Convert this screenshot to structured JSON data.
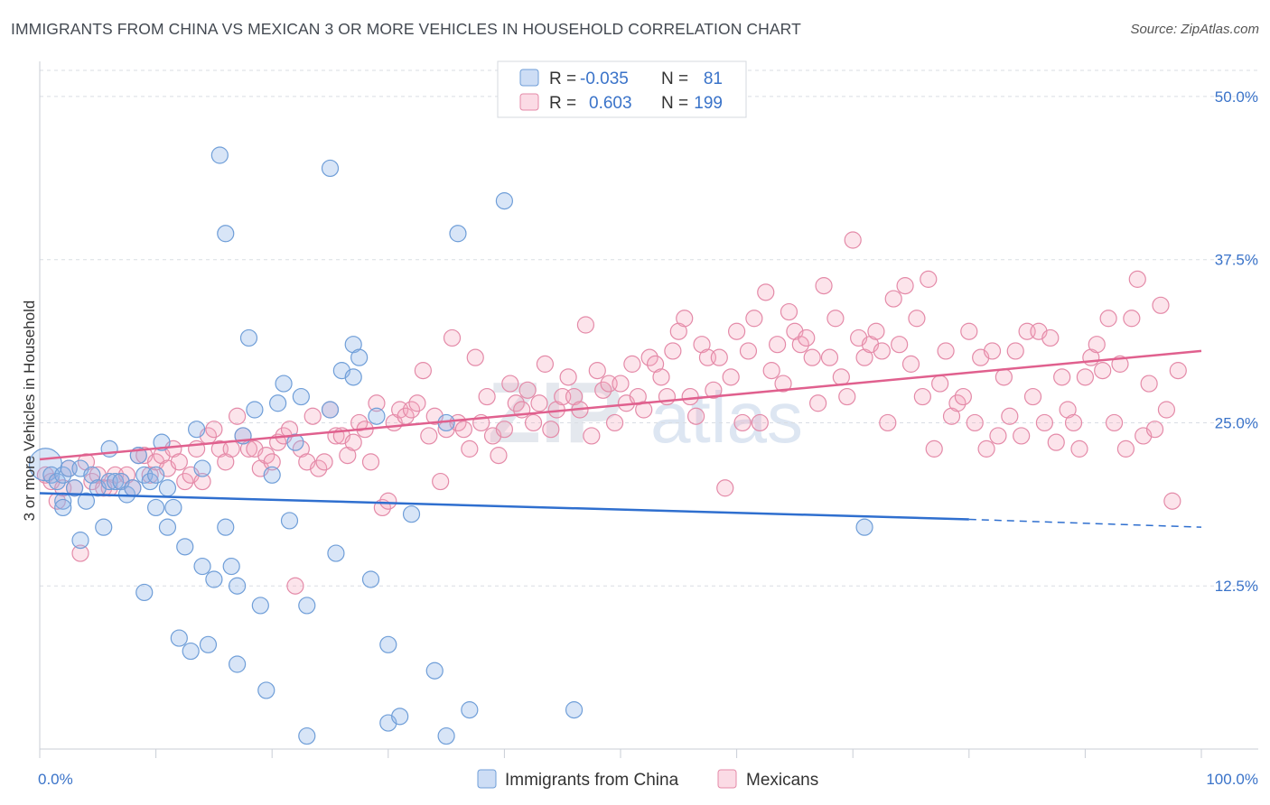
{
  "title": "IMMIGRANTS FROM CHINA VS MEXICAN 3 OR MORE VEHICLES IN HOUSEHOLD CORRELATION CHART",
  "source": "Source: ZipAtlas.com",
  "watermark": {
    "zip": "ZIP",
    "atlas": "atlas"
  },
  "colors": {
    "china_fill": "rgba(144,180,232,0.35)",
    "china_stroke": "#6f9ed8",
    "china_line": "#2f6fcf",
    "mex_fill": "rgba(244,166,190,0.30)",
    "mex_stroke": "#e48aa8",
    "mex_line": "#e0608e",
    "tick": "#3a73c9",
    "grid": "#d9dde3"
  },
  "legend": {
    "china": {
      "r_label": "R =",
      "r_value": "-0.035",
      "n_label": "N =",
      "n_value": "81"
    },
    "mex": {
      "r_label": "R =",
      "r_value": "0.603",
      "n_label": "N =",
      "n_value": "199"
    }
  },
  "chart_data": {
    "type": "scatter",
    "xlabel": "",
    "ylabel": "3 or more Vehicles in Household",
    "xlim": [
      0,
      100
    ],
    "ylim": [
      0,
      52
    ],
    "x_tick_labels": [
      "0.0%",
      "100.0%"
    ],
    "y_ticks": [
      12.5,
      25.0,
      37.5,
      50.0
    ],
    "y_tick_labels": [
      "12.5%",
      "25.0%",
      "37.5%",
      "50.0%"
    ],
    "grid": "horizontal dashed",
    "legend_position": "top-center",
    "series": [
      {
        "name": "Immigrants from China",
        "trend": {
          "x": [
            0,
            80
          ],
          "y": [
            19.6,
            17.6
          ],
          "dashed_to": [
            100,
            17.0
          ]
        },
        "points": [
          [
            0.5,
            21.8
          ],
          [
            1,
            21
          ],
          [
            1.5,
            20.5
          ],
          [
            2,
            21
          ],
          [
            2,
            19
          ],
          [
            2,
            18.5
          ],
          [
            2.5,
            21.5
          ],
          [
            3,
            20
          ],
          [
            3.5,
            21.5
          ],
          [
            3.5,
            16
          ],
          [
            4,
            19
          ],
          [
            4.5,
            21
          ],
          [
            5,
            20
          ],
          [
            5.5,
            17
          ],
          [
            6,
            23
          ],
          [
            6,
            20.5
          ],
          [
            6.5,
            20.5
          ],
          [
            7,
            20.5
          ],
          [
            7.5,
            19.5
          ],
          [
            8,
            20
          ],
          [
            8.5,
            22.5
          ],
          [
            9,
            12
          ],
          [
            9,
            21
          ],
          [
            9.5,
            20.5
          ],
          [
            10,
            21
          ],
          [
            10,
            18.5
          ],
          [
            10.5,
            23.5
          ],
          [
            11,
            17
          ],
          [
            11,
            20
          ],
          [
            11.5,
            18.5
          ],
          [
            12,
            8.5
          ],
          [
            12.5,
            15.5
          ],
          [
            13,
            7.5
          ],
          [
            13.5,
            24.5
          ],
          [
            14,
            21.5
          ],
          [
            14,
            14
          ],
          [
            14.5,
            8
          ],
          [
            15,
            13
          ],
          [
            15.5,
            45.5
          ],
          [
            16,
            39.5
          ],
          [
            16,
            17
          ],
          [
            16.5,
            14
          ],
          [
            17,
            6.5
          ],
          [
            17,
            12.5
          ],
          [
            17.5,
            24
          ],
          [
            18,
            31.5
          ],
          [
            18.5,
            26
          ],
          [
            19,
            11
          ],
          [
            19.5,
            4.5
          ],
          [
            20,
            21
          ],
          [
            20.5,
            26.5
          ],
          [
            21,
            28
          ],
          [
            21.5,
            17.5
          ],
          [
            22,
            23.5
          ],
          [
            22.5,
            27
          ],
          [
            23,
            11
          ],
          [
            23,
            1
          ],
          [
            25,
            26
          ],
          [
            25,
            44.5
          ],
          [
            25.5,
            15
          ],
          [
            26,
            29
          ],
          [
            27,
            28.5
          ],
          [
            27,
            31
          ],
          [
            27.5,
            30
          ],
          [
            28.5,
            13
          ],
          [
            29,
            25.5
          ],
          [
            30,
            2
          ],
          [
            30,
            8
          ],
          [
            31,
            2.5
          ],
          [
            32,
            18
          ],
          [
            34,
            6
          ],
          [
            35,
            25
          ],
          [
            35,
            1
          ],
          [
            36,
            39.5
          ],
          [
            37,
            3
          ],
          [
            40,
            42
          ],
          [
            46,
            3
          ],
          [
            71,
            17
          ]
        ]
      },
      {
        "name": "Mexicans",
        "trend": {
          "x": [
            0,
            100
          ],
          "y": [
            22.2,
            30.5
          ]
        },
        "points": [
          [
            0.5,
            21
          ],
          [
            1,
            20.5
          ],
          [
            1.5,
            19
          ],
          [
            2,
            20
          ],
          [
            2.5,
            21.5
          ],
          [
            3,
            20
          ],
          [
            3.5,
            15
          ],
          [
            4,
            22
          ],
          [
            4.5,
            20.5
          ],
          [
            5,
            21
          ],
          [
            5.5,
            20
          ],
          [
            6,
            20
          ],
          [
            6.5,
            21
          ],
          [
            7,
            20.5
          ],
          [
            7.5,
            21
          ],
          [
            8,
            20
          ],
          [
            8.5,
            22.5
          ],
          [
            9,
            22.5
          ],
          [
            9.5,
            21
          ],
          [
            10,
            22
          ],
          [
            10.5,
            22.5
          ],
          [
            11,
            21.5
          ],
          [
            11.5,
            23
          ],
          [
            12,
            22
          ],
          [
            12.5,
            20.5
          ],
          [
            13,
            21
          ],
          [
            13.5,
            23
          ],
          [
            14,
            20.5
          ],
          [
            14.5,
            24
          ],
          [
            15,
            24.5
          ],
          [
            15.5,
            23
          ],
          [
            16,
            22
          ],
          [
            16.5,
            23
          ],
          [
            17,
            25.5
          ],
          [
            17.5,
            24
          ],
          [
            18,
            23
          ],
          [
            18.5,
            23
          ],
          [
            19,
            21.5
          ],
          [
            19.5,
            22.5
          ],
          [
            20,
            22
          ],
          [
            20.5,
            23.5
          ],
          [
            21,
            24
          ],
          [
            21.5,
            24.5
          ],
          [
            22,
            12.5
          ],
          [
            22.5,
            23
          ],
          [
            23,
            22
          ],
          [
            23.5,
            25.5
          ],
          [
            24,
            21.5
          ],
          [
            24.5,
            22
          ],
          [
            25,
            26
          ],
          [
            25.5,
            24
          ],
          [
            26,
            24
          ],
          [
            26.5,
            22.5
          ],
          [
            27,
            23.5
          ],
          [
            27.5,
            25
          ],
          [
            28,
            24.5
          ],
          [
            28.5,
            22
          ],
          [
            29,
            26.5
          ],
          [
            29.5,
            18.5
          ],
          [
            30,
            19
          ],
          [
            30.5,
            25
          ],
          [
            31,
            26
          ],
          [
            31.5,
            25.5
          ],
          [
            32,
            26
          ],
          [
            32.5,
            26.5
          ],
          [
            33,
            29
          ],
          [
            33.5,
            24
          ],
          [
            34,
            25.5
          ],
          [
            34.5,
            20.5
          ],
          [
            35,
            24.5
          ],
          [
            35.5,
            31.5
          ],
          [
            36,
            25
          ],
          [
            36.5,
            24.5
          ],
          [
            37,
            23
          ],
          [
            37.5,
            30
          ],
          [
            38,
            25
          ],
          [
            38.5,
            27
          ],
          [
            39,
            24
          ],
          [
            39.5,
            22.5
          ],
          [
            40,
            24.5
          ],
          [
            40.5,
            28
          ],
          [
            41,
            26.5
          ],
          [
            41.5,
            26
          ],
          [
            42,
            27.5
          ],
          [
            42.5,
            25
          ],
          [
            43,
            26.5
          ],
          [
            43.5,
            29.5
          ],
          [
            44,
            24.5
          ],
          [
            44.5,
            26
          ],
          [
            45,
            27
          ],
          [
            45.5,
            28.5
          ],
          [
            46,
            27
          ],
          [
            46.5,
            26
          ],
          [
            47,
            32.5
          ],
          [
            47.5,
            24
          ],
          [
            48,
            29
          ],
          [
            48.5,
            27.5
          ],
          [
            49,
            28
          ],
          [
            49.5,
            25
          ],
          [
            50,
            28
          ],
          [
            50.5,
            26.5
          ],
          [
            51,
            29.5
          ],
          [
            51.5,
            27
          ],
          [
            52,
            26
          ],
          [
            52.5,
            30
          ],
          [
            53,
            29.5
          ],
          [
            53.5,
            28.5
          ],
          [
            54,
            27
          ],
          [
            54.5,
            30.5
          ],
          [
            55,
            32
          ],
          [
            55.5,
            33
          ],
          [
            56,
            27
          ],
          [
            56.5,
            25.5
          ],
          [
            57,
            31
          ],
          [
            57.5,
            30
          ],
          [
            58,
            27.5
          ],
          [
            58.5,
            30
          ],
          [
            59,
            20
          ],
          [
            59.5,
            28.5
          ],
          [
            60,
            32
          ],
          [
            60.5,
            25
          ],
          [
            61,
            30.5
          ],
          [
            61.5,
            33
          ],
          [
            62,
            25
          ],
          [
            62.5,
            35
          ],
          [
            63,
            29
          ],
          [
            63.5,
            31
          ],
          [
            64,
            28
          ],
          [
            64.5,
            33.5
          ],
          [
            65,
            32
          ],
          [
            65.5,
            31
          ],
          [
            66,
            31.5
          ],
          [
            66.5,
            30
          ],
          [
            67,
            26.5
          ],
          [
            67.5,
            35.5
          ],
          [
            68,
            30
          ],
          [
            68.5,
            33
          ],
          [
            69,
            28.5
          ],
          [
            69.5,
            27
          ],
          [
            70,
            39
          ],
          [
            70.5,
            31.5
          ],
          [
            71,
            30
          ],
          [
            71.5,
            31
          ],
          [
            72,
            32
          ],
          [
            72.5,
            30.5
          ],
          [
            73,
            25
          ],
          [
            73.5,
            34.5
          ],
          [
            74,
            31
          ],
          [
            74.5,
            35.5
          ],
          [
            75,
            29.5
          ],
          [
            75.5,
            33
          ],
          [
            76,
            27
          ],
          [
            76.5,
            36
          ],
          [
            77,
            23
          ],
          [
            77.5,
            28
          ],
          [
            78,
            30.5
          ],
          [
            78.5,
            25.5
          ],
          [
            79,
            26.5
          ],
          [
            79.5,
            27
          ],
          [
            80,
            32
          ],
          [
            80.5,
            25
          ],
          [
            81,
            30
          ],
          [
            81.5,
            23
          ],
          [
            82,
            30.5
          ],
          [
            82.5,
            24
          ],
          [
            83,
            28.5
          ],
          [
            83.5,
            25.5
          ],
          [
            84,
            30.5
          ],
          [
            84.5,
            24
          ],
          [
            85,
            32
          ],
          [
            85.5,
            27
          ],
          [
            86,
            32
          ],
          [
            86.5,
            25
          ],
          [
            87,
            31.5
          ],
          [
            87.5,
            23.5
          ],
          [
            88,
            28.5
          ],
          [
            88.5,
            26
          ],
          [
            89,
            25
          ],
          [
            89.5,
            23
          ],
          [
            90,
            28.5
          ],
          [
            90.5,
            30
          ],
          [
            91,
            31
          ],
          [
            91.5,
            29
          ],
          [
            92,
            33
          ],
          [
            92.5,
            25
          ],
          [
            93,
            29.5
          ],
          [
            93.5,
            23
          ],
          [
            94,
            33
          ],
          [
            94.5,
            36
          ],
          [
            95,
            24
          ],
          [
            95.5,
            28
          ],
          [
            96,
            24.5
          ],
          [
            96.5,
            34
          ],
          [
            97,
            26
          ],
          [
            97.5,
            19
          ],
          [
            98,
            29
          ]
        ]
      }
    ]
  },
  "bottom_legend": [
    "Immigrants from China",
    "Mexicans"
  ]
}
